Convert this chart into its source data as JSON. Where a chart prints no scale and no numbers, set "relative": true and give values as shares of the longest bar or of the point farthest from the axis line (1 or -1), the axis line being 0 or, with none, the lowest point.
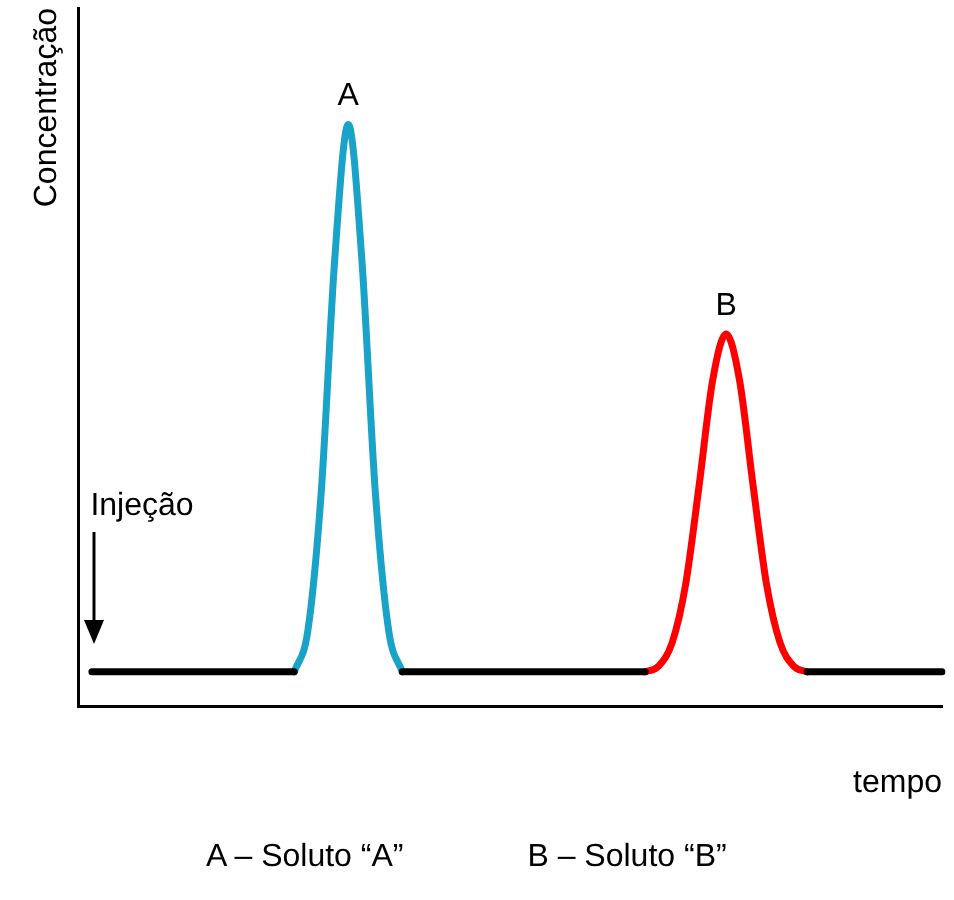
{
  "chart_data": {
    "type": "line",
    "relative": true,
    "xlabel": "tempo",
    "ylabel": "Concentração",
    "legend": false,
    "grid": false,
    "categories": [
      null,
      null,
      null,
      null,
      null,
      null,
      null,
      null,
      null,
      null,
      null,
      null,
      null,
      null,
      null,
      null,
      null,
      null,
      null,
      null,
      null,
      null,
      null,
      null,
      null,
      null,
      null,
      null,
      null,
      null,
      null,
      null,
      null,
      null,
      null,
      null,
      null,
      null,
      null,
      null,
      null,
      null,
      null,
      null,
      null,
      null,
      null,
      null,
      null,
      null,
      null,
      null,
      null,
      null,
      null,
      null,
      null,
      null,
      null,
      null,
      null,
      null,
      null,
      null,
      null
    ],
    "series": [
      {
        "color": "#000000",
        "values": [
          null,
          0.06,
          0.06,
          0.06,
          0.06,
          0.06,
          0.06,
          0.06,
          0.06,
          0.06,
          0.06,
          0.06,
          0.06,
          0.06,
          0.06,
          0.06,
          0.06,
          null,
          null,
          null,
          null,
          null,
          null,
          null,
          0.06,
          0.06,
          0.06,
          0.06,
          0.06,
          0.06,
          0.06,
          0.06,
          0.06,
          0.06,
          0.06,
          0.06,
          0.06,
          0.06,
          0.06,
          0.06,
          0.06,
          0.06,
          0.06,
          null,
          null,
          null,
          null,
          null,
          null,
          null,
          null,
          null,
          null,
          null,
          0.06,
          0.06,
          0.06,
          0.06,
          0.06,
          0.06,
          0.06,
          0.06,
          0.06,
          0.06,
          0.06
        ]
      },
      {
        "color": "#1aa3c8",
        "values": [
          null,
          null,
          null,
          null,
          null,
          null,
          null,
          null,
          null,
          null,
          null,
          null,
          null,
          null,
          null,
          null,
          0.06,
          0.13,
          0.37,
          0.77,
          1,
          0.77,
          0.37,
          0.13,
          0.06,
          null,
          null,
          null,
          null,
          null,
          null,
          null,
          null,
          null,
          null,
          null,
          null,
          null,
          null,
          null,
          null,
          null,
          null,
          null,
          null,
          null,
          null,
          null,
          null,
          null,
          null,
          null,
          null,
          null,
          null,
          null,
          null,
          null,
          null,
          null,
          null,
          null,
          null,
          null,
          null
        ]
      },
      {
        "color": "#ff0000",
        "values": [
          null,
          null,
          null,
          null,
          null,
          null,
          null,
          null,
          null,
          null,
          null,
          null,
          null,
          null,
          null,
          null,
          null,
          null,
          null,
          null,
          null,
          null,
          null,
          null,
          null,
          null,
          null,
          null,
          null,
          null,
          null,
          null,
          null,
          null,
          null,
          null,
          null,
          null,
          null,
          null,
          null,
          null,
          0.06,
          0.07,
          0.11,
          0.21,
          0.38,
          0.56,
          0.64,
          0.56,
          0.38,
          0.21,
          0.11,
          0.07,
          0.06,
          null,
          null,
          null,
          null,
          null,
          null,
          null,
          null,
          null,
          null
        ]
      }
    ],
    "annotations": [
      {
        "text": "A",
        "y": 1
      },
      {
        "text": "B",
        "y": 0.64
      },
      "Injeção",
      "A – Soluto “A”",
      "B – Soluto “B”"
    ]
  }
}
